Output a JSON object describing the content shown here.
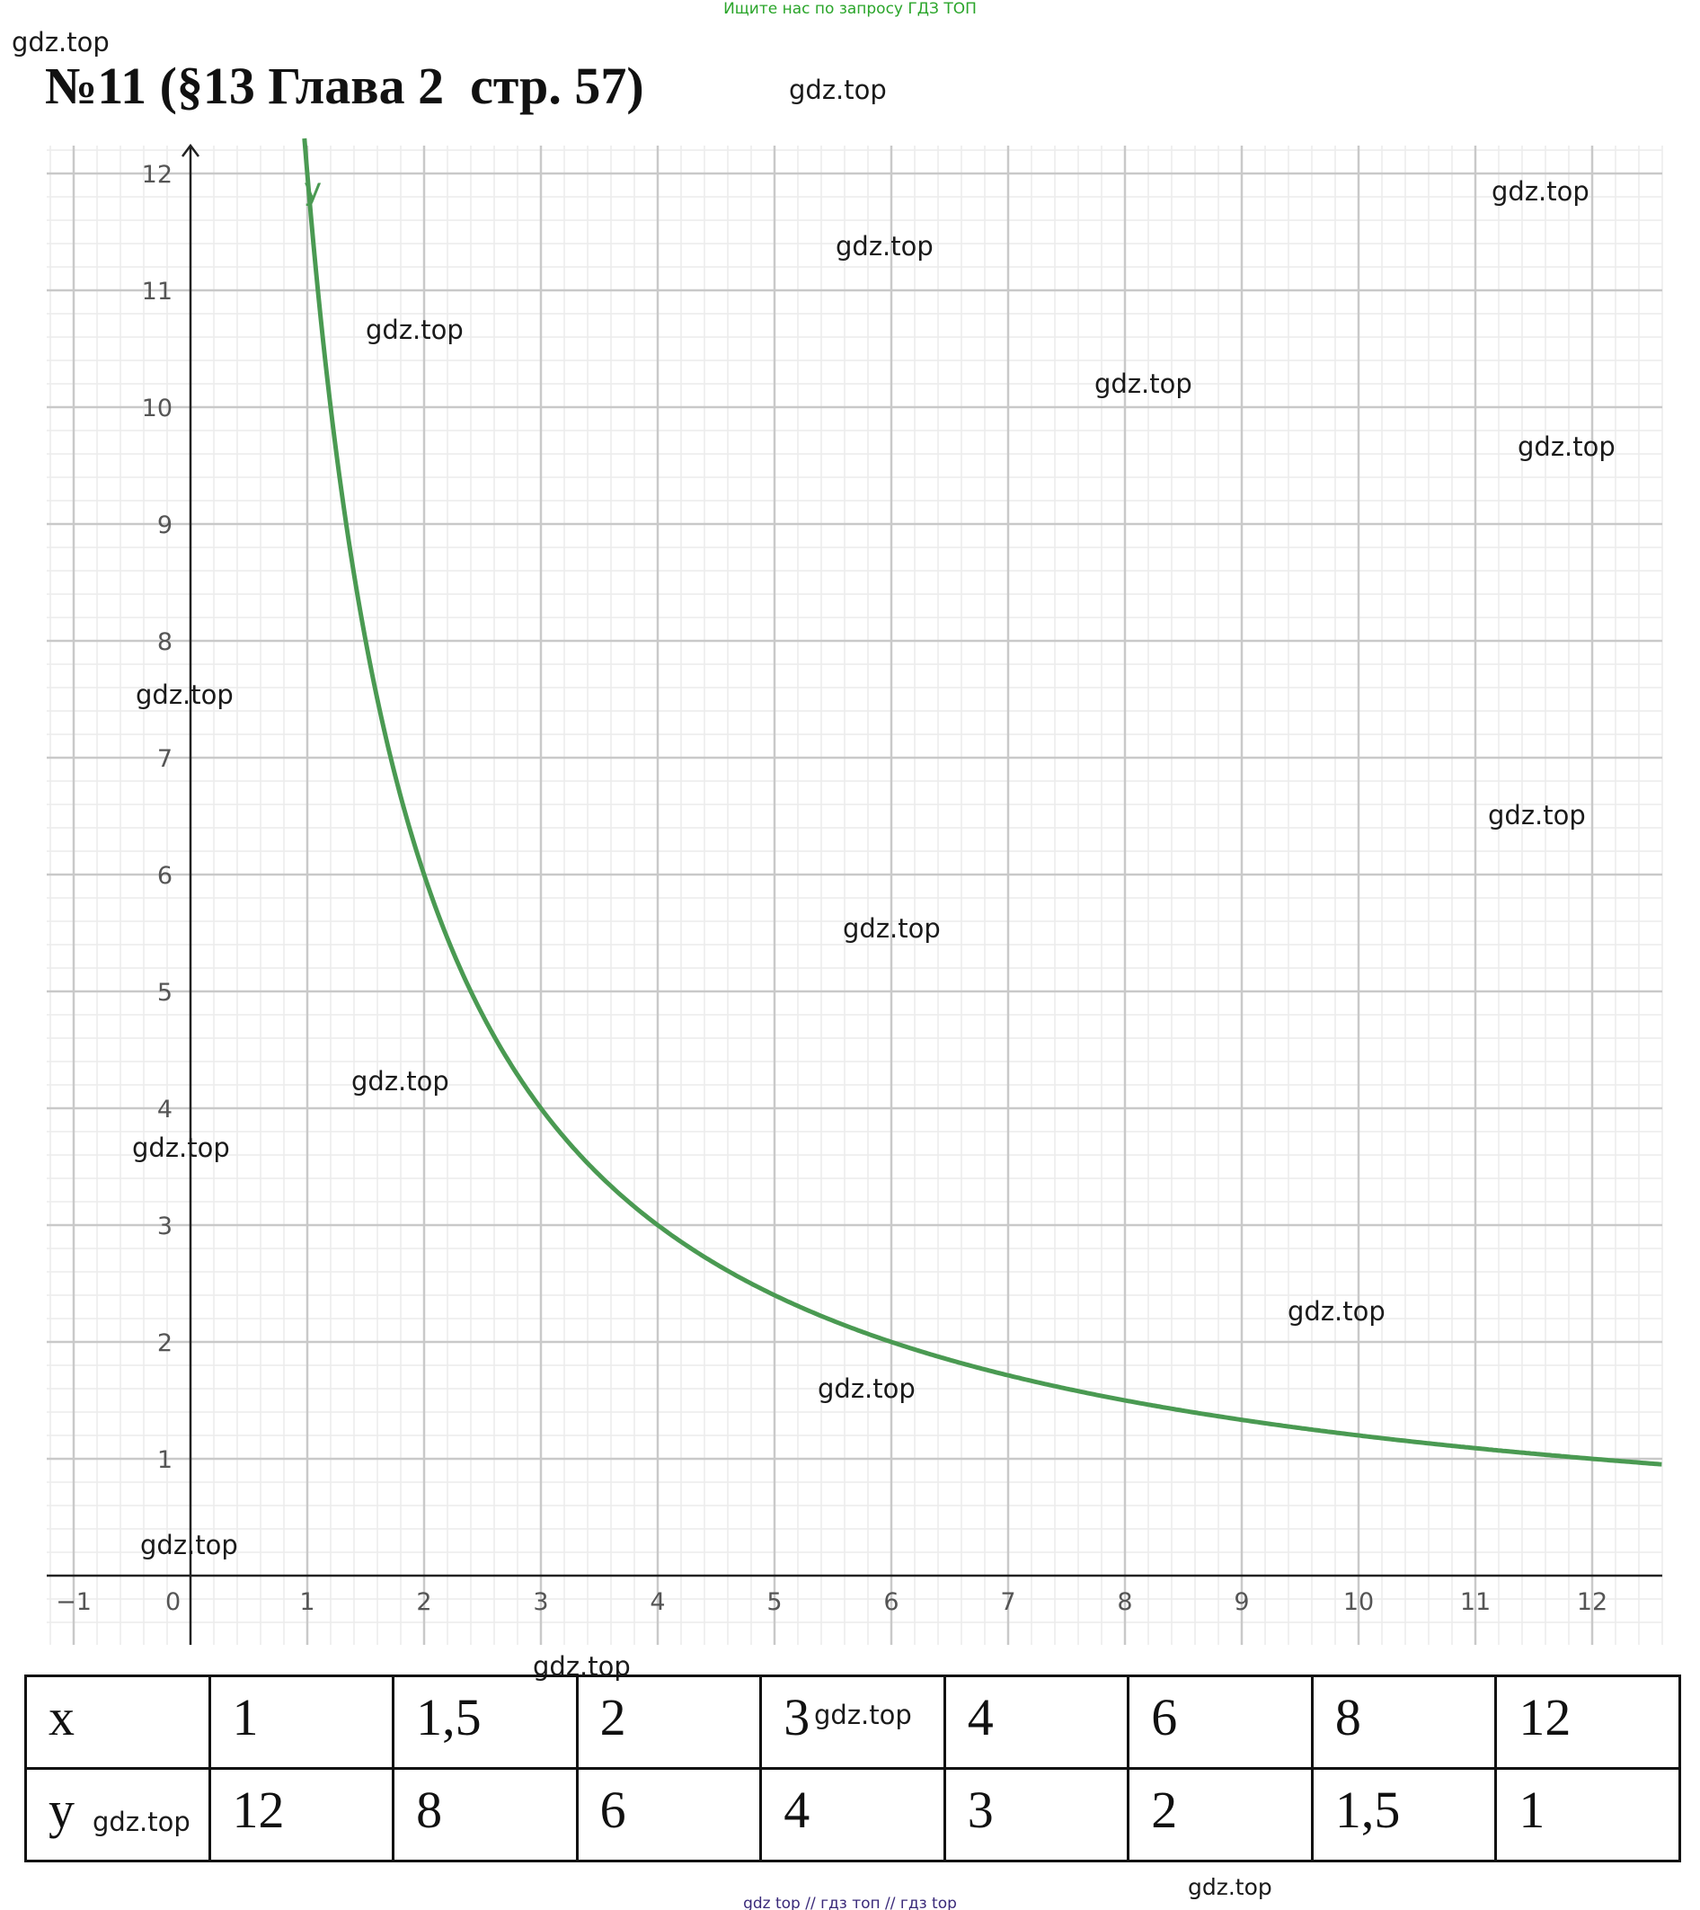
{
  "header": {
    "notice": "Ищите нас по запросу ГДЗ ТОП",
    "title": "№11 (§13 Глава 2  стр. 57)"
  },
  "watermarks": [
    "gdz.top",
    "gdz.top",
    "gdz.top",
    "gdz.top",
    "gdz.top",
    "gdz.top",
    "gdz.top",
    "gdz.top",
    "gdz.top",
    "gdz.top",
    "gdz.top",
    "gdz.top",
    "gdz.top",
    "gdz.top",
    "gdz.top",
    "gdz.top",
    "gdz.top",
    "gdz.top",
    "gdz.top"
  ],
  "chart_data": {
    "type": "line",
    "series": [
      {
        "name": "y",
        "color": "#4a9a52",
        "function": "y = 12/x",
        "x_range": [
          1,
          12.6
        ]
      }
    ],
    "xlim": [
      -1.25,
      12.6
    ],
    "ylim": [
      -0.6,
      12.3
    ],
    "x_ticks": [
      "−1",
      "0",
      "1",
      "2",
      "3",
      "4",
      "5",
      "6",
      "7",
      "8",
      "9",
      "10",
      "11",
      "12"
    ],
    "y_ticks": [
      "1",
      "2",
      "3",
      "4",
      "5",
      "6",
      "7",
      "8",
      "9",
      "10",
      "11",
      "12"
    ],
    "grid": true,
    "minor_grid_step": 0.2
  },
  "table": {
    "rows": [
      {
        "label": "x",
        "values": [
          "1",
          "1,5",
          "2",
          "3",
          "4",
          "6",
          "8",
          "12"
        ]
      },
      {
        "label": "y",
        "values": [
          "12",
          "8",
          "6",
          "4",
          "3",
          "2",
          "1,5",
          "1"
        ]
      }
    ]
  },
  "footer": {
    "links": "gdz top  //  гдз топ  //  гдз top"
  }
}
